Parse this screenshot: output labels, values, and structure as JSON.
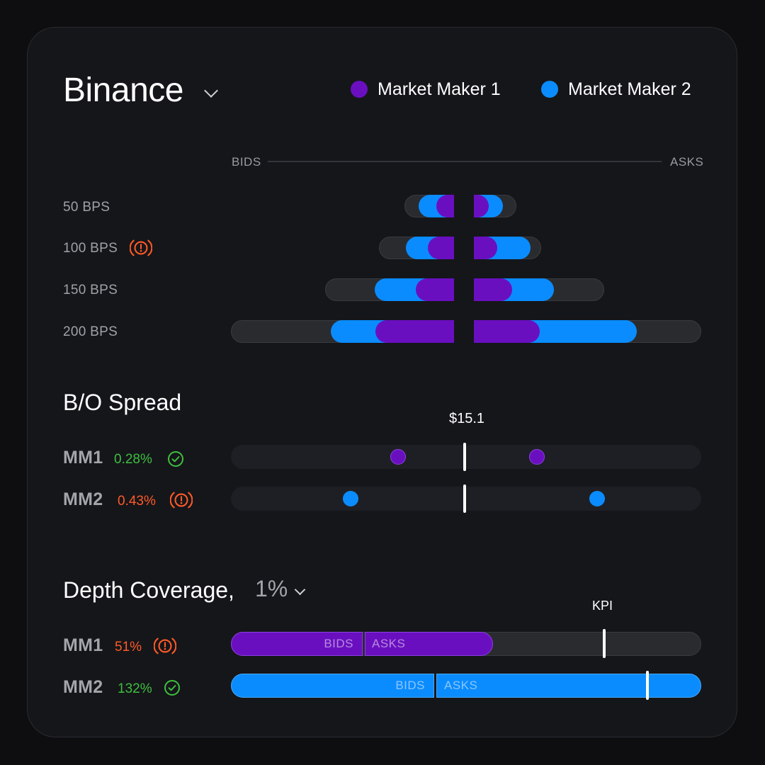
{
  "header": {
    "exchange": "Binance",
    "legend": [
      {
        "label": "Market Maker 1",
        "color": "#6a0fc0"
      },
      {
        "label": "Market Maker 2",
        "color": "#0a8cff"
      }
    ]
  },
  "orderbook": {
    "bids_label": "BIDS",
    "asks_label": "ASKS",
    "rows": [
      {
        "label": "50 BPS",
        "warning": false
      },
      {
        "label": "100 BPS",
        "warning": true
      },
      {
        "label": "150 BPS",
        "warning": false
      },
      {
        "label": "200 BPS",
        "warning": false
      }
    ]
  },
  "spread": {
    "title": "B/O Spread",
    "mid_price": "$15.1",
    "rows": [
      {
        "label": "MM1",
        "value": "0.28%",
        "status": "ok"
      },
      {
        "label": "MM2",
        "value": "0.43%",
        "status": "warning"
      }
    ]
  },
  "depth": {
    "title": "Depth Coverage,",
    "range": "1%",
    "kpi_label": "KPI",
    "rows": [
      {
        "label": "MM1",
        "value": "51%",
        "status": "warning",
        "bids_label": "BIDS",
        "asks_label": "ASKS"
      },
      {
        "label": "MM2",
        "value": "132%",
        "status": "ok",
        "bids_label": "BIDS",
        "asks_label": "ASKS"
      }
    ]
  },
  "colors": {
    "mm1": "#6a0fc0",
    "mm2": "#0a8cff",
    "ok": "#3fbf3f",
    "warning": "#ff5a28"
  }
}
